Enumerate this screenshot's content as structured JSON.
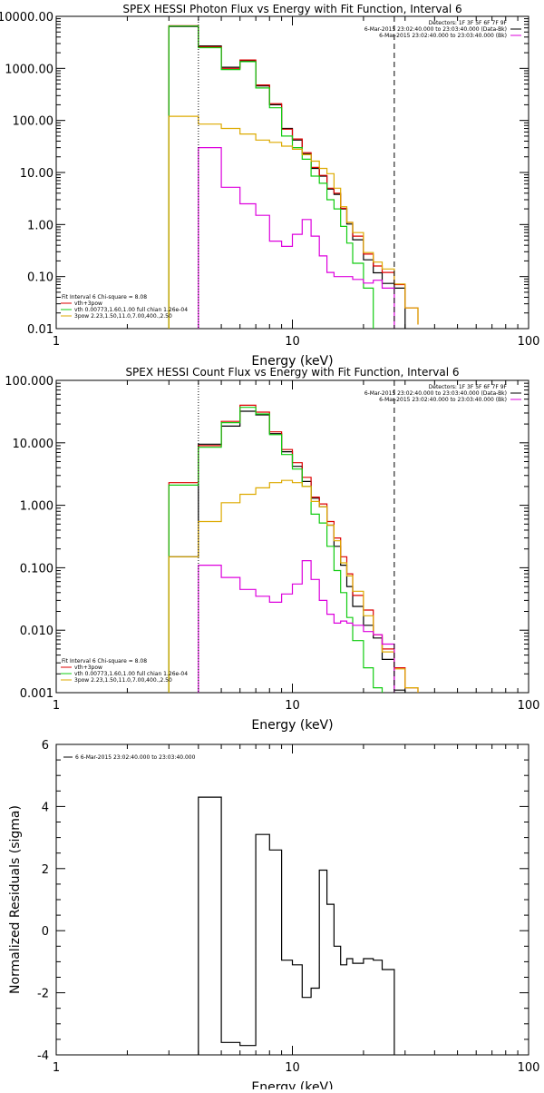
{
  "colors": {
    "data": "#000000",
    "total": "#dd0000",
    "thermal": "#11cc11",
    "nonthermal": "#ddaa00",
    "background": "#dd00dd"
  },
  "chart_data": [
    {
      "type": "line",
      "title": "SPEX HESSI Photon Flux vs Energy with Fit Function, Interval 6",
      "xlabel": "Energy (keV)",
      "ylabel": "",
      "xscale": "log",
      "yscale": "log",
      "xlim": [
        1,
        100
      ],
      "ylim": [
        0.01,
        10000
      ],
      "xticks": [
        "1",
        "10",
        "100"
      ],
      "yticks": [
        "0.01",
        "0.10",
        "1.00",
        "10.00",
        "100.00",
        "1000.00",
        "10000.00"
      ],
      "vlines": [
        {
          "x": 4,
          "style": "dotted"
        },
        {
          "x": 27,
          "style": "dashed"
        }
      ],
      "legend_header": [
        "Detectors: 1F 3F 5F 6F 7F 9F",
        "6-Mar-2015 23:02:40.000 to 23:03:40.000 (Data-Bk)",
        "6-Mar-2015 23:02:40.000 to 23:03:40.000 (Bk)"
      ],
      "fit_legend": [
        "Fit Interval  6   Chi-square = 8.08",
        "vth+3pow",
        "vth 0.00773,1.60,1.00  full chian 1.26e-04",
        "3pow 2.23,1.50,11.0,7.00,400.,2.50"
      ],
      "edges": [
        3,
        4,
        5,
        6,
        7,
        8,
        9,
        10,
        11,
        12,
        13,
        14,
        15,
        16,
        17,
        18,
        20,
        22,
        24,
        27,
        30,
        34
      ],
      "series": [
        {
          "key": "data",
          "values": [
            6400,
            2700,
            1050,
            1400,
            460,
            200,
            70,
            42,
            23,
            12,
            8.5,
            4.8,
            3.8,
            2.0,
            1.02,
            0.51,
            0.21,
            0.118,
            0.074,
            0.06,
            0.007,
            null
          ]
        },
        {
          "key": "total",
          "values": [
            6600,
            2600,
            1000,
            1450,
            480,
            210,
            68,
            44,
            24,
            12.5,
            8.8,
            5.0,
            4.0,
            2.05,
            1.1,
            0.6,
            0.27,
            0.16,
            0.12,
            0.07,
            0.025,
            0.012
          ]
        },
        {
          "key": "thermal",
          "values": [
            6500,
            2500,
            950,
            1350,
            420,
            175,
            50,
            30,
            18,
            8.5,
            6.2,
            3.0,
            2.0,
            0.92,
            0.44,
            0.18,
            0.06,
            0.009,
            null,
            null,
            null,
            null
          ]
        },
        {
          "key": "nonthermal",
          "values": [
            120,
            85,
            70,
            55,
            42,
            38,
            32,
            28,
            22,
            16.5,
            12,
            9.5,
            5.0,
            2.2,
            1.1,
            0.7,
            0.29,
            0.19,
            0.14,
            0.072,
            0.025,
            0.012
          ]
        },
        {
          "key": "background",
          "values": [
            null,
            30,
            5.2,
            2.5,
            1.5,
            0.48,
            0.38,
            0.65,
            1.25,
            0.6,
            0.25,
            0.12,
            0.1,
            0.1,
            0.1,
            0.088,
            0.075,
            0.085,
            0.06,
            0.01,
            null,
            null
          ]
        }
      ]
    },
    {
      "type": "line",
      "title": "SPEX HESSI Count Flux vs Energy with Fit Function, Interval 6",
      "xlabel": "Energy (keV)",
      "ylabel": "",
      "xscale": "log",
      "yscale": "log",
      "xlim": [
        1,
        100
      ],
      "ylim": [
        0.001,
        100
      ],
      "xticks": [
        "1",
        "10",
        "100"
      ],
      "yticks": [
        "0.001",
        "0.010",
        "0.100",
        "1.000",
        "10.000",
        "100.000"
      ],
      "vlines": [
        {
          "x": 4,
          "style": "dotted"
        },
        {
          "x": 27,
          "style": "dashed"
        }
      ],
      "legend_header": [
        "Detectors: 1F 3F 5F 6F 7F 9F",
        "6-Mar-2015 23:02:40.000 to 23:03:40.000 (Data-Bk)",
        "6-Mar-2015 23:02:40.000 to 23:03:40.000 (Bk)"
      ],
      "fit_legend": [
        "Fit Interval  6   Chi-square = 8.08",
        "vth+3pow",
        "vth 0.00773,1.60,1.00  full chian 1.26e-04",
        "3pow 2.23,1.50,11.0,7.00,400.,2.50"
      ],
      "edges": [
        3,
        4,
        5,
        6,
        7,
        8,
        9,
        10,
        11,
        12,
        13,
        14,
        15,
        16,
        17,
        18,
        20,
        22,
        24,
        27,
        30,
        34
      ],
      "series": [
        {
          "key": "data",
          "values": [
            0.15,
            9.5,
            18.5,
            32,
            28,
            14,
            7.2,
            4.2,
            2.4,
            1.3,
            0.95,
            0.48,
            0.22,
            0.11,
            0.05,
            0.024,
            0.012,
            0.0075,
            0.0034,
            0.0011,
            null,
            null
          ]
        },
        {
          "key": "total",
          "values": [
            2.3,
            9.0,
            22,
            40,
            31,
            15,
            7.8,
            4.8,
            2.8,
            1.35,
            1.05,
            0.55,
            0.3,
            0.15,
            0.08,
            0.036,
            0.021,
            0.0085,
            0.005,
            0.0025,
            0.0012,
            null
          ]
        },
        {
          "key": "thermal",
          "values": [
            2.1,
            8.5,
            21,
            37,
            29,
            13.5,
            6.5,
            3.8,
            2.0,
            0.72,
            0.52,
            0.22,
            0.09,
            0.04,
            0.016,
            0.0068,
            0.0025,
            0.0012,
            null,
            null,
            null,
            null
          ]
        },
        {
          "key": "nonthermal",
          "values": [
            0.15,
            0.55,
            1.1,
            1.5,
            1.9,
            2.3,
            2.5,
            2.3,
            2.0,
            1.15,
            0.95,
            0.48,
            0.27,
            0.12,
            0.074,
            0.042,
            0.017,
            0.0085,
            0.0045,
            0.0024,
            0.0012,
            null
          ]
        },
        {
          "key": "background",
          "values": [
            null,
            0.11,
            0.07,
            0.045,
            0.035,
            0.028,
            0.038,
            0.055,
            0.13,
            0.065,
            0.03,
            0.018,
            0.013,
            0.014,
            0.013,
            0.012,
            0.0095,
            0.0085,
            0.006,
            0.001,
            null,
            null
          ]
        }
      ]
    },
    {
      "type": "line",
      "title": "",
      "xlabel": "Energy (keV)",
      "ylabel": "Normalized Residuals (sigma)",
      "xscale": "log",
      "yscale": "linear",
      "xlim": [
        1,
        100
      ],
      "ylim": [
        -4,
        6
      ],
      "xticks": [
        "1",
        "10",
        "100"
      ],
      "yticks": [
        "-4",
        "-2",
        "0",
        "2",
        "4",
        "6"
      ],
      "legend": [
        "6  6-Mar-2015 23:02:40.000 to 23:03:40.000"
      ],
      "edges": [
        4,
        5,
        6,
        7,
        8,
        9,
        10,
        11,
        12,
        13,
        14,
        15,
        16,
        17,
        18,
        20,
        22,
        24,
        27
      ],
      "series": [
        {
          "key": "data",
          "values": [
            4.3,
            -3.6,
            -3.7,
            3.1,
            2.6,
            -0.95,
            -1.1,
            -2.15,
            -1.85,
            1.95,
            0.85,
            -0.5,
            -1.1,
            -0.9,
            -1.05,
            -0.9,
            -0.95,
            -1.25
          ]
        }
      ]
    }
  ]
}
